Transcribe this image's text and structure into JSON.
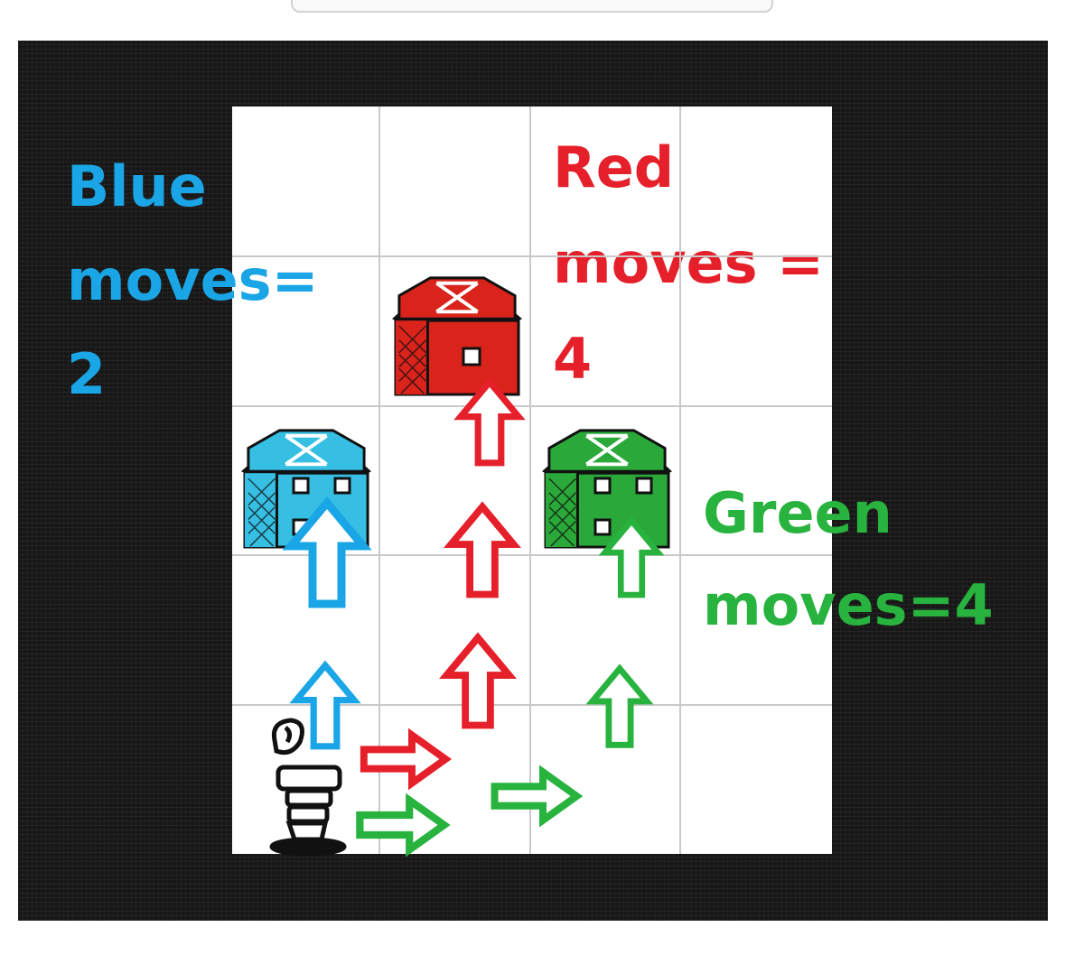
{
  "labels": {
    "blue": {
      "line1": "Blue",
      "line2": "moves=",
      "line3": "2"
    },
    "red": {
      "line1": "Red",
      "line2": "moves =",
      "line3": "4"
    },
    "green": {
      "line1": "Green",
      "line2": "moves=4"
    }
  },
  "colors": {
    "blue": "#1aa6e6",
    "red": "#e6202a",
    "green": "#28b33e",
    "board_frame": "#171717",
    "grid_bg": "#ffffff",
    "grid_lines": "#c9c9c9"
  },
  "board": {
    "columns": 4,
    "rows": 5
  },
  "icons": {
    "barns": [
      "red-barn-icon",
      "blue-barn-icon",
      "green-barn-icon"
    ],
    "player": "farmer-icon",
    "arrows": [
      "arrow-up-icon",
      "arrow-right-icon"
    ]
  }
}
